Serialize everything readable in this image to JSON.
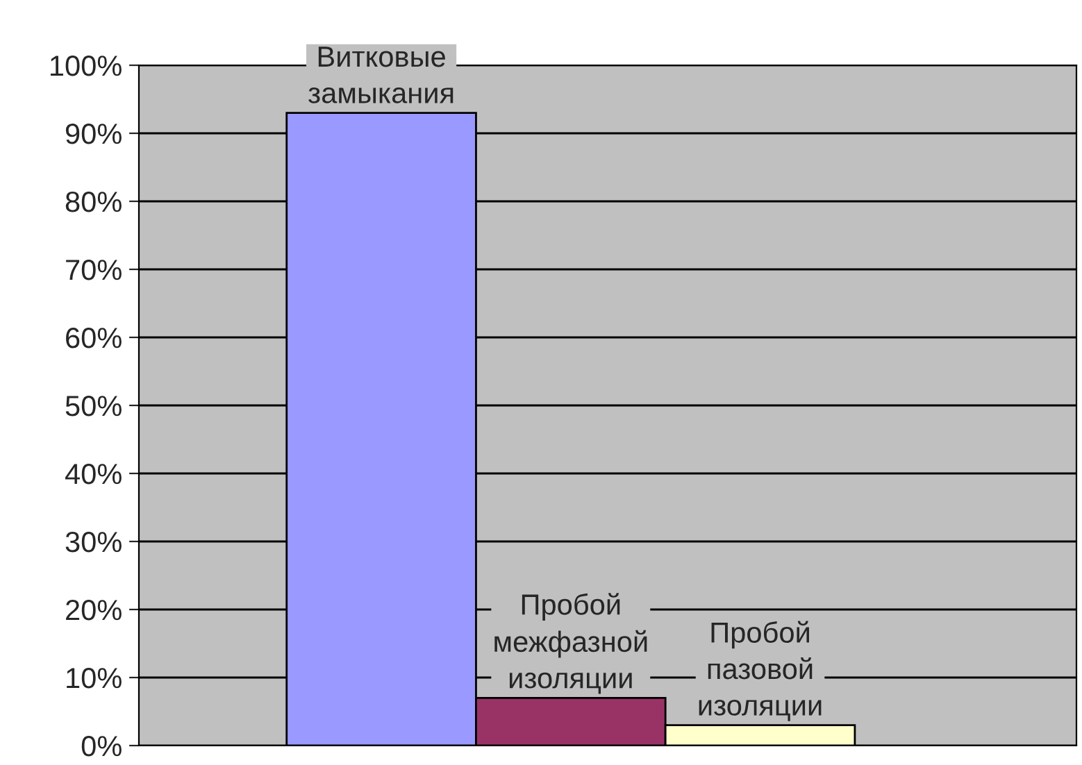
{
  "chart_data": {
    "type": "bar",
    "categories": [
      "Витковые\nзамыкания",
      "Пробой\nмежфазной\nизоляции",
      "Пробой\nпазовой\nизоляции"
    ],
    "values": [
      93,
      7,
      3
    ],
    "colors": [
      "#9999ff",
      "#993366",
      "#ffffcc"
    ],
    "ylim": [
      0,
      100
    ],
    "yticks": [
      {
        "value": 0,
        "label": "0%"
      },
      {
        "value": 10,
        "label": "10%"
      },
      {
        "value": 20,
        "label": "20%"
      },
      {
        "value": 30,
        "label": "30%"
      },
      {
        "value": 40,
        "label": "40%"
      },
      {
        "value": 50,
        "label": "50%"
      },
      {
        "value": 60,
        "label": "60%"
      },
      {
        "value": 70,
        "label": "70%"
      },
      {
        "value": 80,
        "label": "80%"
      },
      {
        "value": 90,
        "label": "90%"
      },
      {
        "value": 100,
        "label": "100%"
      }
    ],
    "grid": "y",
    "legend": false,
    "tick_labels": "y"
  }
}
